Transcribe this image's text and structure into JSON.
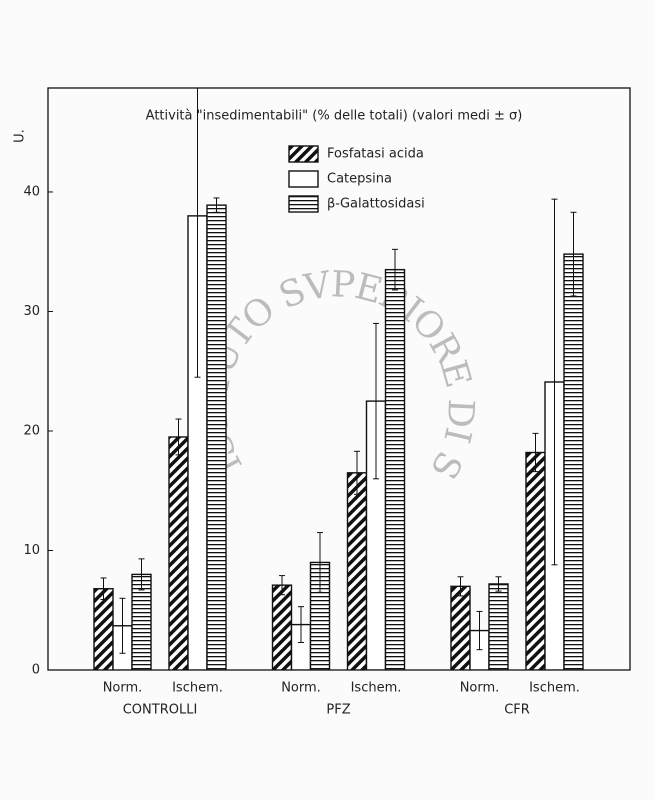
{
  "chart_data": {
    "type": "bar",
    "title": "Attività \"insedimentabili\" (% delle totali) (valori medi ± σ)",
    "y_label": "U.",
    "categories": [
      "Norm.",
      "Ischem.",
      "Norm.",
      "Ischem.",
      "Norm.",
      "Ischem."
    ],
    "groups": [
      "CONTROLLI",
      "PFZ",
      "CFR"
    ],
    "series": [
      {
        "name": "Fosfatasi acida",
        "pattern": "diagonal",
        "color": "#111111",
        "values": [
          6.8,
          19.5,
          7.1,
          16.5,
          7.0,
          18.2
        ],
        "errors": [
          0.9,
          1.5,
          0.8,
          1.8,
          0.8,
          1.6
        ]
      },
      {
        "name": "Catepsina",
        "pattern": "none",
        "color": "#111111",
        "values": [
          3.7,
          38.0,
          3.8,
          22.5,
          3.3,
          24.1
        ],
        "errors": [
          2.3,
          13.5,
          1.5,
          6.5,
          1.6,
          15.3
        ]
      },
      {
        "name": "β-Galattosidasi",
        "pattern": "horizontal",
        "color": "#111111",
        "values": [
          8.0,
          38.9,
          9.0,
          33.5,
          7.2,
          34.8
        ],
        "errors": [
          1.3,
          0.6,
          2.5,
          1.7,
          0.6,
          3.5
        ]
      }
    ],
    "ylim": [
      0,
      48.7
    ],
    "yticks": [
      0,
      10,
      20,
      30,
      40
    ],
    "watermark": "ISTITUTO SVPERIORE DI SANITA"
  }
}
